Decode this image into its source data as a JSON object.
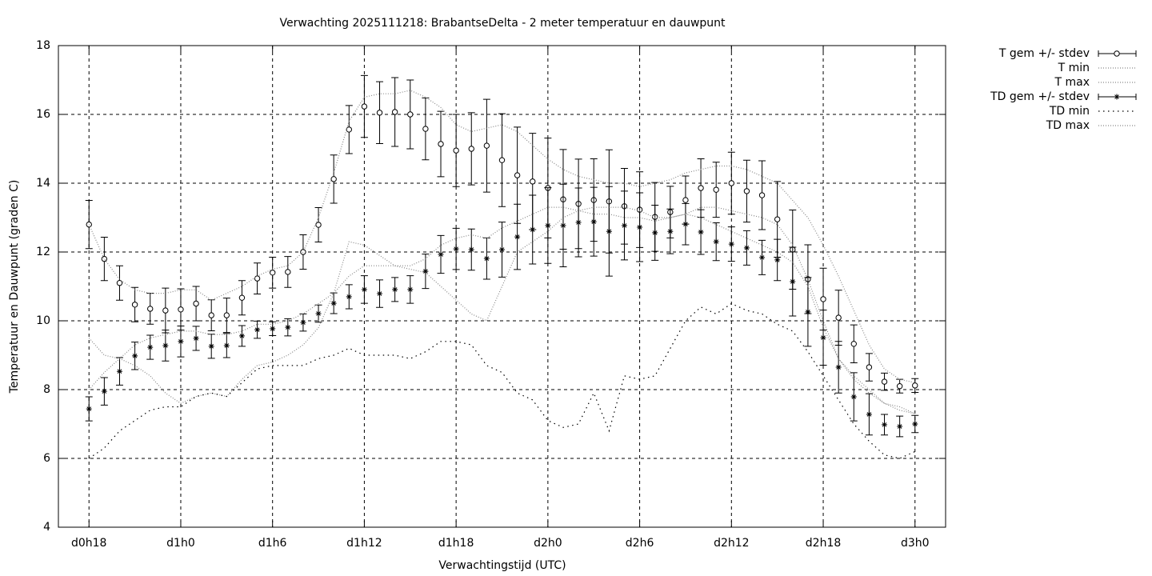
{
  "chart_data": {
    "type": "errorbar-line",
    "title": "Verwachting 2025111218: BrabantseDelta - 2 meter temperatuur en dauwpunt",
    "xlabel": "Verwachtingstijd (UTC)",
    "ylabel": "Temperatuur en Dauwpunt (graden C)",
    "x": [
      18,
      19,
      20,
      21,
      22,
      23,
      24,
      25,
      26,
      27,
      28,
      29,
      30,
      31,
      32,
      33,
      34,
      35,
      36,
      37,
      38,
      39,
      40,
      41,
      42,
      43,
      44,
      45,
      46,
      47,
      48,
      49,
      50,
      51,
      52,
      53,
      54,
      55,
      56,
      57,
      58,
      59,
      60,
      61,
      62,
      63,
      64,
      65,
      66,
      67,
      68,
      69,
      70,
      71,
      72
    ],
    "xlim": [
      16,
      74
    ],
    "xticks": [
      {
        "value": 18,
        "label": "d0h18"
      },
      {
        "value": 24,
        "label": "d1h0"
      },
      {
        "value": 30,
        "label": "d1h6"
      },
      {
        "value": 36,
        "label": "d1h12"
      },
      {
        "value": 42,
        "label": "d1h18"
      },
      {
        "value": 48,
        "label": "d2h0"
      },
      {
        "value": 54,
        "label": "d2h6"
      },
      {
        "value": 60,
        "label": "d2h12"
      },
      {
        "value": 66,
        "label": "d2h18"
      },
      {
        "value": 72,
        "label": "d3h0"
      }
    ],
    "ylim": [
      4,
      18
    ],
    "yticks": [
      4,
      6,
      8,
      10,
      12,
      14,
      16,
      18
    ],
    "grid": true,
    "legend": "outside-right",
    "series": [
      {
        "name": "T gem +/- stdev",
        "color": "#000000",
        "style": "errorbar",
        "marker": "circle",
        "values": [
          12.8,
          11.8,
          11.1,
          10.47,
          10.35,
          10.3,
          10.33,
          10.5,
          10.16,
          10.16,
          10.67,
          11.23,
          11.4,
          11.42,
          12.0,
          12.79,
          14.12,
          15.56,
          16.23,
          16.05,
          16.07,
          16.0,
          15.58,
          15.14,
          14.95,
          15.0,
          15.09,
          14.67,
          14.23,
          14.05,
          13.86,
          13.53,
          13.4,
          13.51,
          13.47,
          13.33,
          13.23,
          13.02,
          13.16,
          13.51,
          13.86,
          13.81,
          14.0,
          13.77,
          13.65,
          12.95,
          12.07,
          11.21,
          10.63,
          10.09,
          9.33,
          8.65,
          8.23,
          8.1,
          8.12
        ],
        "errors": [
          0.7,
          0.63,
          0.5,
          0.5,
          0.45,
          0.65,
          0.6,
          0.5,
          0.45,
          0.5,
          0.5,
          0.45,
          0.45,
          0.45,
          0.5,
          0.5,
          0.7,
          0.7,
          0.9,
          0.9,
          1.0,
          1.0,
          0.9,
          0.95,
          1.05,
          1.05,
          1.35,
          1.35,
          1.4,
          1.4,
          1.45,
          1.45,
          1.3,
          1.2,
          1.5,
          1.1,
          1.1,
          1.0,
          0.75,
          0.7,
          0.85,
          0.8,
          0.9,
          0.9,
          1.0,
          1.1,
          1.15,
          1.0,
          0.9,
          0.8,
          0.55,
          0.4,
          0.25,
          0.2,
          0.2
        ]
      },
      {
        "name": "T min",
        "color": "#888888",
        "style": "dotted",
        "values": [
          9.5,
          9.0,
          8.9,
          8.7,
          8.4,
          7.9,
          7.6,
          7.8,
          7.9,
          7.8,
          8.3,
          8.7,
          8.8,
          9.0,
          9.3,
          9.8,
          10.8,
          12.3,
          12.2,
          11.9,
          11.6,
          11.5,
          11.4,
          11.0,
          10.6,
          10.2,
          10.0,
          11.0,
          12.0,
          12.3,
          12.6,
          13.0,
          13.2,
          13.1,
          13.1,
          13.0,
          13.0,
          12.9,
          13.0,
          13.1,
          13.3,
          13.3,
          13.2,
          13.1,
          13.0,
          12.8,
          12.2,
          11.2,
          10.0,
          8.9,
          8.3,
          7.9,
          7.6,
          7.4,
          7.3
        ]
      },
      {
        "name": "T max",
        "color": "#888888",
        "style": "dotted",
        "values": [
          12.8,
          11.8,
          11.2,
          10.9,
          10.8,
          10.8,
          10.9,
          10.9,
          10.6,
          10.8,
          11.0,
          11.3,
          11.5,
          11.6,
          12.0,
          13.0,
          14.3,
          15.8,
          16.5,
          16.6,
          16.6,
          16.7,
          16.5,
          16.2,
          15.7,
          15.5,
          15.6,
          15.7,
          15.5,
          15.1,
          14.7,
          14.4,
          14.2,
          14.1,
          14.0,
          14.0,
          13.9,
          14.0,
          14.1,
          14.3,
          14.4,
          14.5,
          14.5,
          14.4,
          14.2,
          14.0,
          13.5,
          13.0,
          12.2,
          11.3,
          10.3,
          9.3,
          8.6,
          8.3,
          8.2
        ]
      },
      {
        "name": "TD gem +/- stdev",
        "color": "#000000",
        "style": "errorbar",
        "marker": "star",
        "values": [
          7.44,
          7.95,
          8.53,
          8.98,
          9.23,
          9.28,
          9.4,
          9.49,
          9.26,
          9.28,
          9.56,
          9.74,
          9.77,
          9.81,
          9.95,
          10.21,
          10.51,
          10.7,
          10.91,
          10.79,
          10.91,
          10.91,
          11.44,
          11.93,
          12.09,
          12.07,
          11.81,
          12.07,
          12.44,
          12.65,
          12.77,
          12.77,
          12.86,
          12.88,
          12.6,
          12.77,
          12.72,
          12.56,
          12.6,
          12.81,
          12.58,
          12.3,
          12.23,
          12.12,
          11.84,
          11.77,
          11.14,
          10.26,
          9.51,
          8.65,
          7.79,
          7.28,
          6.98,
          6.93,
          7.0
        ],
        "errors": [
          0.35,
          0.4,
          0.4,
          0.4,
          0.35,
          0.45,
          0.45,
          0.35,
          0.35,
          0.35,
          0.3,
          0.25,
          0.2,
          0.25,
          0.25,
          0.25,
          0.3,
          0.35,
          0.4,
          0.4,
          0.35,
          0.4,
          0.5,
          0.55,
          0.6,
          0.6,
          0.6,
          0.8,
          0.95,
          1.0,
          1.1,
          1.2,
          1.0,
          1.0,
          1.3,
          1.0,
          1.0,
          0.8,
          0.65,
          0.6,
          0.65,
          0.55,
          0.5,
          0.5,
          0.5,
          0.6,
          1.0,
          1.0,
          0.8,
          0.75,
          0.7,
          0.6,
          0.3,
          0.3,
          0.25
        ]
      },
      {
        "name": "TD min",
        "color": "#000000",
        "style": "sparse-dotted",
        "values": [
          6.0,
          6.3,
          6.8,
          7.1,
          7.4,
          7.5,
          7.5,
          7.8,
          7.9,
          7.8,
          8.2,
          8.6,
          8.7,
          8.7,
          8.7,
          8.9,
          9.0,
          9.2,
          9.0,
          9.0,
          9.0,
          8.9,
          9.1,
          9.4,
          9.4,
          9.3,
          8.7,
          8.5,
          7.9,
          7.7,
          7.1,
          6.9,
          7.0,
          7.9,
          6.8,
          8.4,
          8.3,
          8.4,
          9.2,
          10.0,
          10.4,
          10.2,
          10.5,
          10.3,
          10.2,
          9.9,
          9.7,
          9.1,
          8.4,
          7.7,
          7.0,
          6.5,
          6.1,
          6.0,
          6.2
        ]
      },
      {
        "name": "TD max",
        "color": "#888888",
        "style": "dotted",
        "values": [
          8.0,
          8.5,
          8.9,
          9.3,
          9.5,
          9.6,
          9.7,
          9.7,
          9.6,
          9.6,
          9.7,
          9.9,
          9.9,
          10.0,
          10.2,
          10.5,
          10.8,
          11.3,
          11.6,
          11.6,
          11.6,
          11.6,
          11.8,
          12.2,
          12.4,
          12.5,
          12.4,
          12.7,
          12.9,
          13.1,
          13.3,
          13.3,
          13.2,
          13.3,
          13.3,
          13.3,
          13.2,
          13.0,
          13.0,
          13.1,
          13.0,
          12.8,
          12.6,
          12.4,
          12.2,
          12.0,
          11.7,
          11.0,
          9.8,
          8.9,
          8.4,
          8.0,
          7.6,
          7.5,
          7.3
        ]
      }
    ]
  }
}
